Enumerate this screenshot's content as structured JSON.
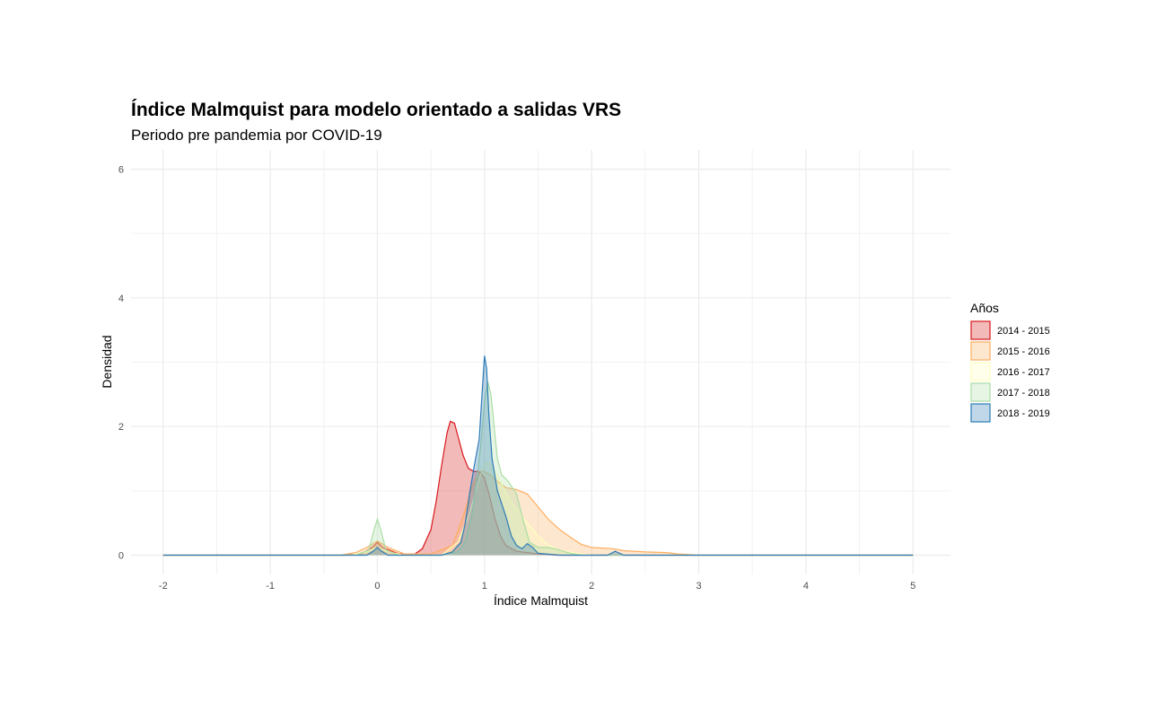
{
  "chart_data": {
    "type": "area",
    "title": "Índice Malmquist para modelo orientado a salidas VRS",
    "subtitle": "Periodo pre pandemia por COVID-19",
    "xlabel": "Índice Malmquist",
    "ylabel": "Densidad",
    "xlim": [
      -2.3,
      5.35
    ],
    "ylim": [
      -0.3,
      6.3
    ],
    "x_ticks": [
      "-2",
      "-1",
      "0",
      "1",
      "2",
      "3",
      "4",
      "5"
    ],
    "y_ticks": [
      "0",
      "2",
      "4",
      "6"
    ],
    "grid": true,
    "legend": {
      "title": "Años",
      "position": "right"
    },
    "series": [
      {
        "name": "2014 - 2015",
        "color": "#d7191c",
        "points": [
          [
            -2,
            0
          ],
          [
            -0.3,
            0
          ],
          [
            -0.15,
            0.02
          ],
          [
            -0.05,
            0.12
          ],
          [
            0,
            0.2
          ],
          [
            0.05,
            0.12
          ],
          [
            0.2,
            0.02
          ],
          [
            0.35,
            0.02
          ],
          [
            0.42,
            0.1
          ],
          [
            0.5,
            0.4
          ],
          [
            0.55,
            0.85
          ],
          [
            0.6,
            1.4
          ],
          [
            0.65,
            1.9
          ],
          [
            0.68,
            2.08
          ],
          [
            0.72,
            2.05
          ],
          [
            0.76,
            1.8
          ],
          [
            0.8,
            1.55
          ],
          [
            0.85,
            1.35
          ],
          [
            0.9,
            1.3
          ],
          [
            0.95,
            1.3
          ],
          [
            1.0,
            1.2
          ],
          [
            1.05,
            0.9
          ],
          [
            1.1,
            0.55
          ],
          [
            1.15,
            0.3
          ],
          [
            1.2,
            0.15
          ],
          [
            1.3,
            0.06
          ],
          [
            1.5,
            0.02
          ],
          [
            1.7,
            0
          ],
          [
            5,
            0
          ]
        ]
      },
      {
        "name": "2015 - 2016",
        "color": "#fdae61",
        "points": [
          [
            -2,
            0
          ],
          [
            -0.35,
            0
          ],
          [
            -0.2,
            0.04
          ],
          [
            -0.1,
            0.12
          ],
          [
            0,
            0.22
          ],
          [
            0.1,
            0.12
          ],
          [
            0.25,
            0.02
          ],
          [
            0.5,
            0.02
          ],
          [
            0.7,
            0.15
          ],
          [
            0.8,
            0.6
          ],
          [
            0.88,
            1.05
          ],
          [
            0.95,
            1.3
          ],
          [
            1.0,
            1.3
          ],
          [
            1.05,
            1.25
          ],
          [
            1.12,
            1.15
          ],
          [
            1.2,
            1.05
          ],
          [
            1.3,
            1.02
          ],
          [
            1.4,
            0.95
          ],
          [
            1.5,
            0.75
          ],
          [
            1.6,
            0.55
          ],
          [
            1.7,
            0.4
          ],
          [
            1.8,
            0.28
          ],
          [
            1.9,
            0.17
          ],
          [
            2.0,
            0.12
          ],
          [
            2.1,
            0.11
          ],
          [
            2.2,
            0.1
          ],
          [
            2.3,
            0.07
          ],
          [
            2.5,
            0.05
          ],
          [
            2.7,
            0.04
          ],
          [
            2.8,
            0.02
          ],
          [
            3.0,
            0
          ],
          [
            5,
            0
          ]
        ]
      },
      {
        "name": "2016 - 2017",
        "color": "#ffffbf",
        "points": [
          [
            -2,
            0
          ],
          [
            -0.25,
            0
          ],
          [
            -0.1,
            0.05
          ],
          [
            0,
            0.12
          ],
          [
            0.1,
            0.05
          ],
          [
            0.25,
            0
          ],
          [
            0.6,
            0
          ],
          [
            0.75,
            0.2
          ],
          [
            0.85,
            0.6
          ],
          [
            0.92,
            1.0
          ],
          [
            0.98,
            1.35
          ],
          [
            1.02,
            1.45
          ],
          [
            1.06,
            1.4
          ],
          [
            1.1,
            1.3
          ],
          [
            1.15,
            1.15
          ],
          [
            1.2,
            0.95
          ],
          [
            1.3,
            0.7
          ],
          [
            1.4,
            0.5
          ],
          [
            1.5,
            0.3
          ],
          [
            1.6,
            0.15
          ],
          [
            1.7,
            0.08
          ],
          [
            1.85,
            0.03
          ],
          [
            2.0,
            0
          ],
          [
            5,
            0
          ]
        ]
      },
      {
        "name": "2017 - 2018",
        "color": "#abdda4",
        "points": [
          [
            -2,
            0
          ],
          [
            -0.2,
            0
          ],
          [
            -0.08,
            0.08
          ],
          [
            -0.03,
            0.4
          ],
          [
            0,
            0.56
          ],
          [
            0.03,
            0.4
          ],
          [
            0.08,
            0.08
          ],
          [
            0.2,
            0
          ],
          [
            0.6,
            0
          ],
          [
            0.75,
            0.05
          ],
          [
            0.82,
            0.2
          ],
          [
            0.88,
            0.6
          ],
          [
            0.93,
            1.2
          ],
          [
            0.97,
            1.8
          ],
          [
            1.0,
            2.4
          ],
          [
            1.03,
            2.7
          ],
          [
            1.06,
            2.5
          ],
          [
            1.09,
            2.0
          ],
          [
            1.12,
            1.5
          ],
          [
            1.16,
            1.25
          ],
          [
            1.22,
            1.15
          ],
          [
            1.3,
            0.95
          ],
          [
            1.36,
            0.55
          ],
          [
            1.42,
            0.2
          ],
          [
            1.5,
            0.12
          ],
          [
            1.6,
            0.12
          ],
          [
            1.7,
            0.08
          ],
          [
            1.8,
            0.03
          ],
          [
            1.9,
            0
          ],
          [
            5,
            0
          ]
        ]
      },
      {
        "name": "2018 - 2019",
        "color": "#2c7bb6",
        "points": [
          [
            -2,
            0
          ],
          [
            -0.1,
            0
          ],
          [
            -0.04,
            0.06
          ],
          [
            0,
            0.12
          ],
          [
            0.04,
            0.06
          ],
          [
            0.1,
            0
          ],
          [
            0.6,
            0
          ],
          [
            0.7,
            0.05
          ],
          [
            0.78,
            0.2
          ],
          [
            0.82,
            0.5
          ],
          [
            0.86,
            0.95
          ],
          [
            0.9,
            1.35
          ],
          [
            0.95,
            1.8
          ],
          [
            0.98,
            2.6
          ],
          [
            1.0,
            3.1
          ],
          [
            1.02,
            2.9
          ],
          [
            1.04,
            2.2
          ],
          [
            1.07,
            1.5
          ],
          [
            1.12,
            1.0
          ],
          [
            1.2,
            0.6
          ],
          [
            1.25,
            0.3
          ],
          [
            1.3,
            0.15
          ],
          [
            1.35,
            0.1
          ],
          [
            1.4,
            0.18
          ],
          [
            1.45,
            0.12
          ],
          [
            1.5,
            0.03
          ],
          [
            1.7,
            0
          ],
          [
            2.15,
            0
          ],
          [
            2.22,
            0.06
          ],
          [
            2.3,
            0
          ],
          [
            5,
            0
          ]
        ]
      }
    ]
  }
}
